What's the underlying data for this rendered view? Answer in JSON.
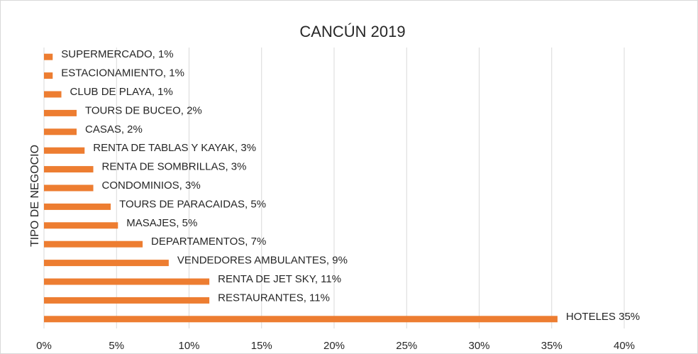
{
  "chart_data": {
    "type": "bar",
    "orientation": "horizontal",
    "title": "CANCÚN 2019",
    "y_label": "TIPO DE NEGOCIO",
    "values": [
      0.6,
      0.6,
      1.2,
      2.25,
      2.25,
      2.8,
      3.4,
      3.4,
      4.6,
      5.1,
      6.8,
      8.6,
      11.4,
      11.4,
      35.4
    ],
    "value_labels": [
      "SUPERMERCADO, 1%",
      "ESTACIONAMIENTO, 1%",
      "CLUB DE PLAYA, 1%",
      "TOURS DE BUCEO, 2%",
      "CASAS, 2%",
      "RENTA DE TABLAS Y KAYAK, 3%",
      "RENTA DE SOMBRILLAS, 3%",
      "CONDOMINIOS, 3%",
      "TOURS DE PARACAIDAS, 5%",
      "MASAJES, 5%",
      "DEPARTAMENTOS, 7%",
      "VENDEDORES AMBULANTES, 9%",
      "RENTA DE JET SKY, 11%",
      "RESTAURANTES, 11%",
      "HOTELES 35%"
    ],
    "color": "#ed7d31",
    "xlim": [
      0,
      40
    ],
    "xticks": [
      {
        "value": 0,
        "label": "0%"
      },
      {
        "value": 5,
        "label": "5%"
      },
      {
        "value": 10,
        "label": "10%"
      },
      {
        "value": 15,
        "label": "15%"
      },
      {
        "value": 20,
        "label": "20%"
      },
      {
        "value": 25,
        "label": "25%"
      },
      {
        "value": 30,
        "label": "30%"
      },
      {
        "value": 35,
        "label": "35%"
      },
      {
        "value": 40,
        "label": "40%"
      }
    ],
    "grid": true
  }
}
